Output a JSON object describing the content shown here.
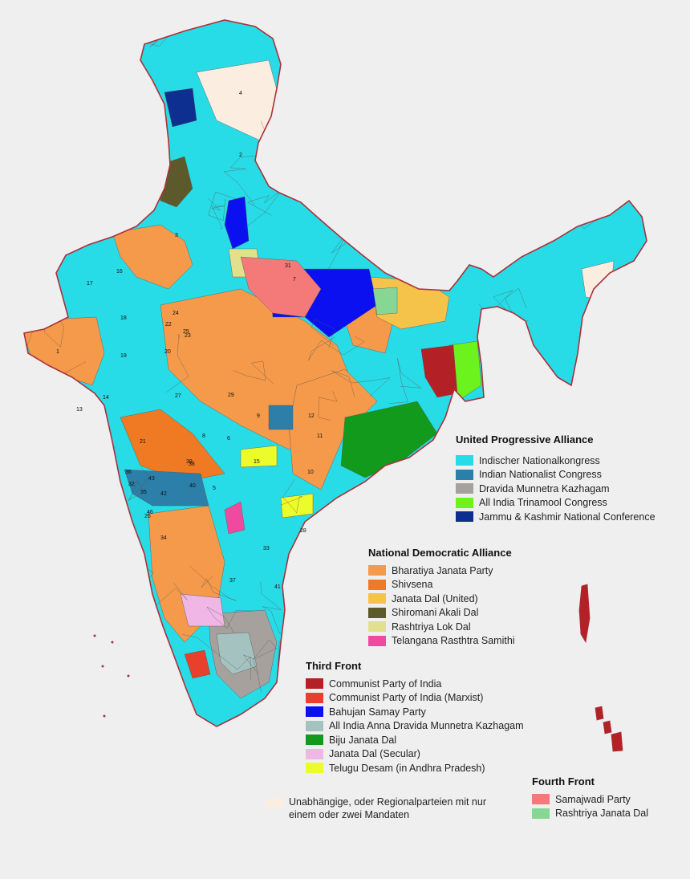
{
  "map": {
    "colors": {
      "border": "#a8323c",
      "district_line": "#555555",
      "sea": "#efefef",
      "inc": "#27dce6",
      "bjp": "#f59a4a"
    },
    "region_numbers": [
      "4",
      "2",
      "1",
      "17",
      "16",
      "18",
      "19",
      "22",
      "23",
      "13",
      "14",
      "27",
      "29",
      "12",
      "15",
      "10",
      "11",
      "21",
      "32",
      "43",
      "40",
      "26",
      "34",
      "38",
      "5",
      "8",
      "6",
      "9",
      "3",
      "7",
      "20",
      "24",
      "25",
      "28",
      "31",
      "33",
      "35",
      "36",
      "37",
      "39",
      "41",
      "42",
      "46"
    ]
  },
  "legend": {
    "upa": {
      "title": "United Progressive Alliance",
      "items": [
        {
          "label": "Indischer Nationalkongress",
          "color": "#27dce6"
        },
        {
          "label": "Indian Nationalist Congress",
          "color": "#2b7fa8"
        },
        {
          "label": "Dravida Munnetra Kazhagam",
          "color": "#a6a19c"
        },
        {
          "label": "All India Trinamool Congress",
          "color": "#6cf21c"
        },
        {
          "label": "Jammu & Kashmir National Conference",
          "color": "#0d2f8f"
        }
      ]
    },
    "nda": {
      "title": "National Democratic Alliance",
      "items": [
        {
          "label": "Bharatiya Janata Party",
          "color": "#f59a4a"
        },
        {
          "label": "Shivsena",
          "color": "#f07a24"
        },
        {
          "label": "Janata Dal (United)",
          "color": "#f5c34a"
        },
        {
          "label": "Shiromani Akali Dal",
          "color": "#5c5a2a"
        },
        {
          "label": "Rashtriya Lok Dal",
          "color": "#e2e08c"
        },
        {
          "label": "Telangana Rasthtra Samithi",
          "color": "#f04aa0"
        }
      ]
    },
    "third": {
      "title": "Third Front",
      "items": [
        {
          "label": "Communist Party of India",
          "color": "#b32025"
        },
        {
          "label": "Communist Party of India (Marxist)",
          "color": "#e8402a"
        },
        {
          "label": "Bahujan Samay Party",
          "color": "#0a10f0"
        },
        {
          "label": "All India Anna Dravida Munnetra Kazhagam",
          "color": "#a3c2c0"
        },
        {
          "label": "Biju Janata Dal",
          "color": "#129a1c"
        },
        {
          "label": "Janata Dal (Secular)",
          "color": "#efb6e6"
        },
        {
          "label": "Telugu Desam (in Andhra Pradesh)",
          "color": "#ecfb2a"
        }
      ]
    },
    "fourth": {
      "title": "Fourth Front",
      "items": [
        {
          "label": "Samajwadi Party",
          "color": "#f47a7a"
        },
        {
          "label": "Rashtriya Janata Dal",
          "color": "#86d694"
        }
      ]
    },
    "other": {
      "label": "Unabhängige, oder Regionalparteien mit nur einem oder zwei Mandaten",
      "color": "#fbeee0"
    }
  }
}
